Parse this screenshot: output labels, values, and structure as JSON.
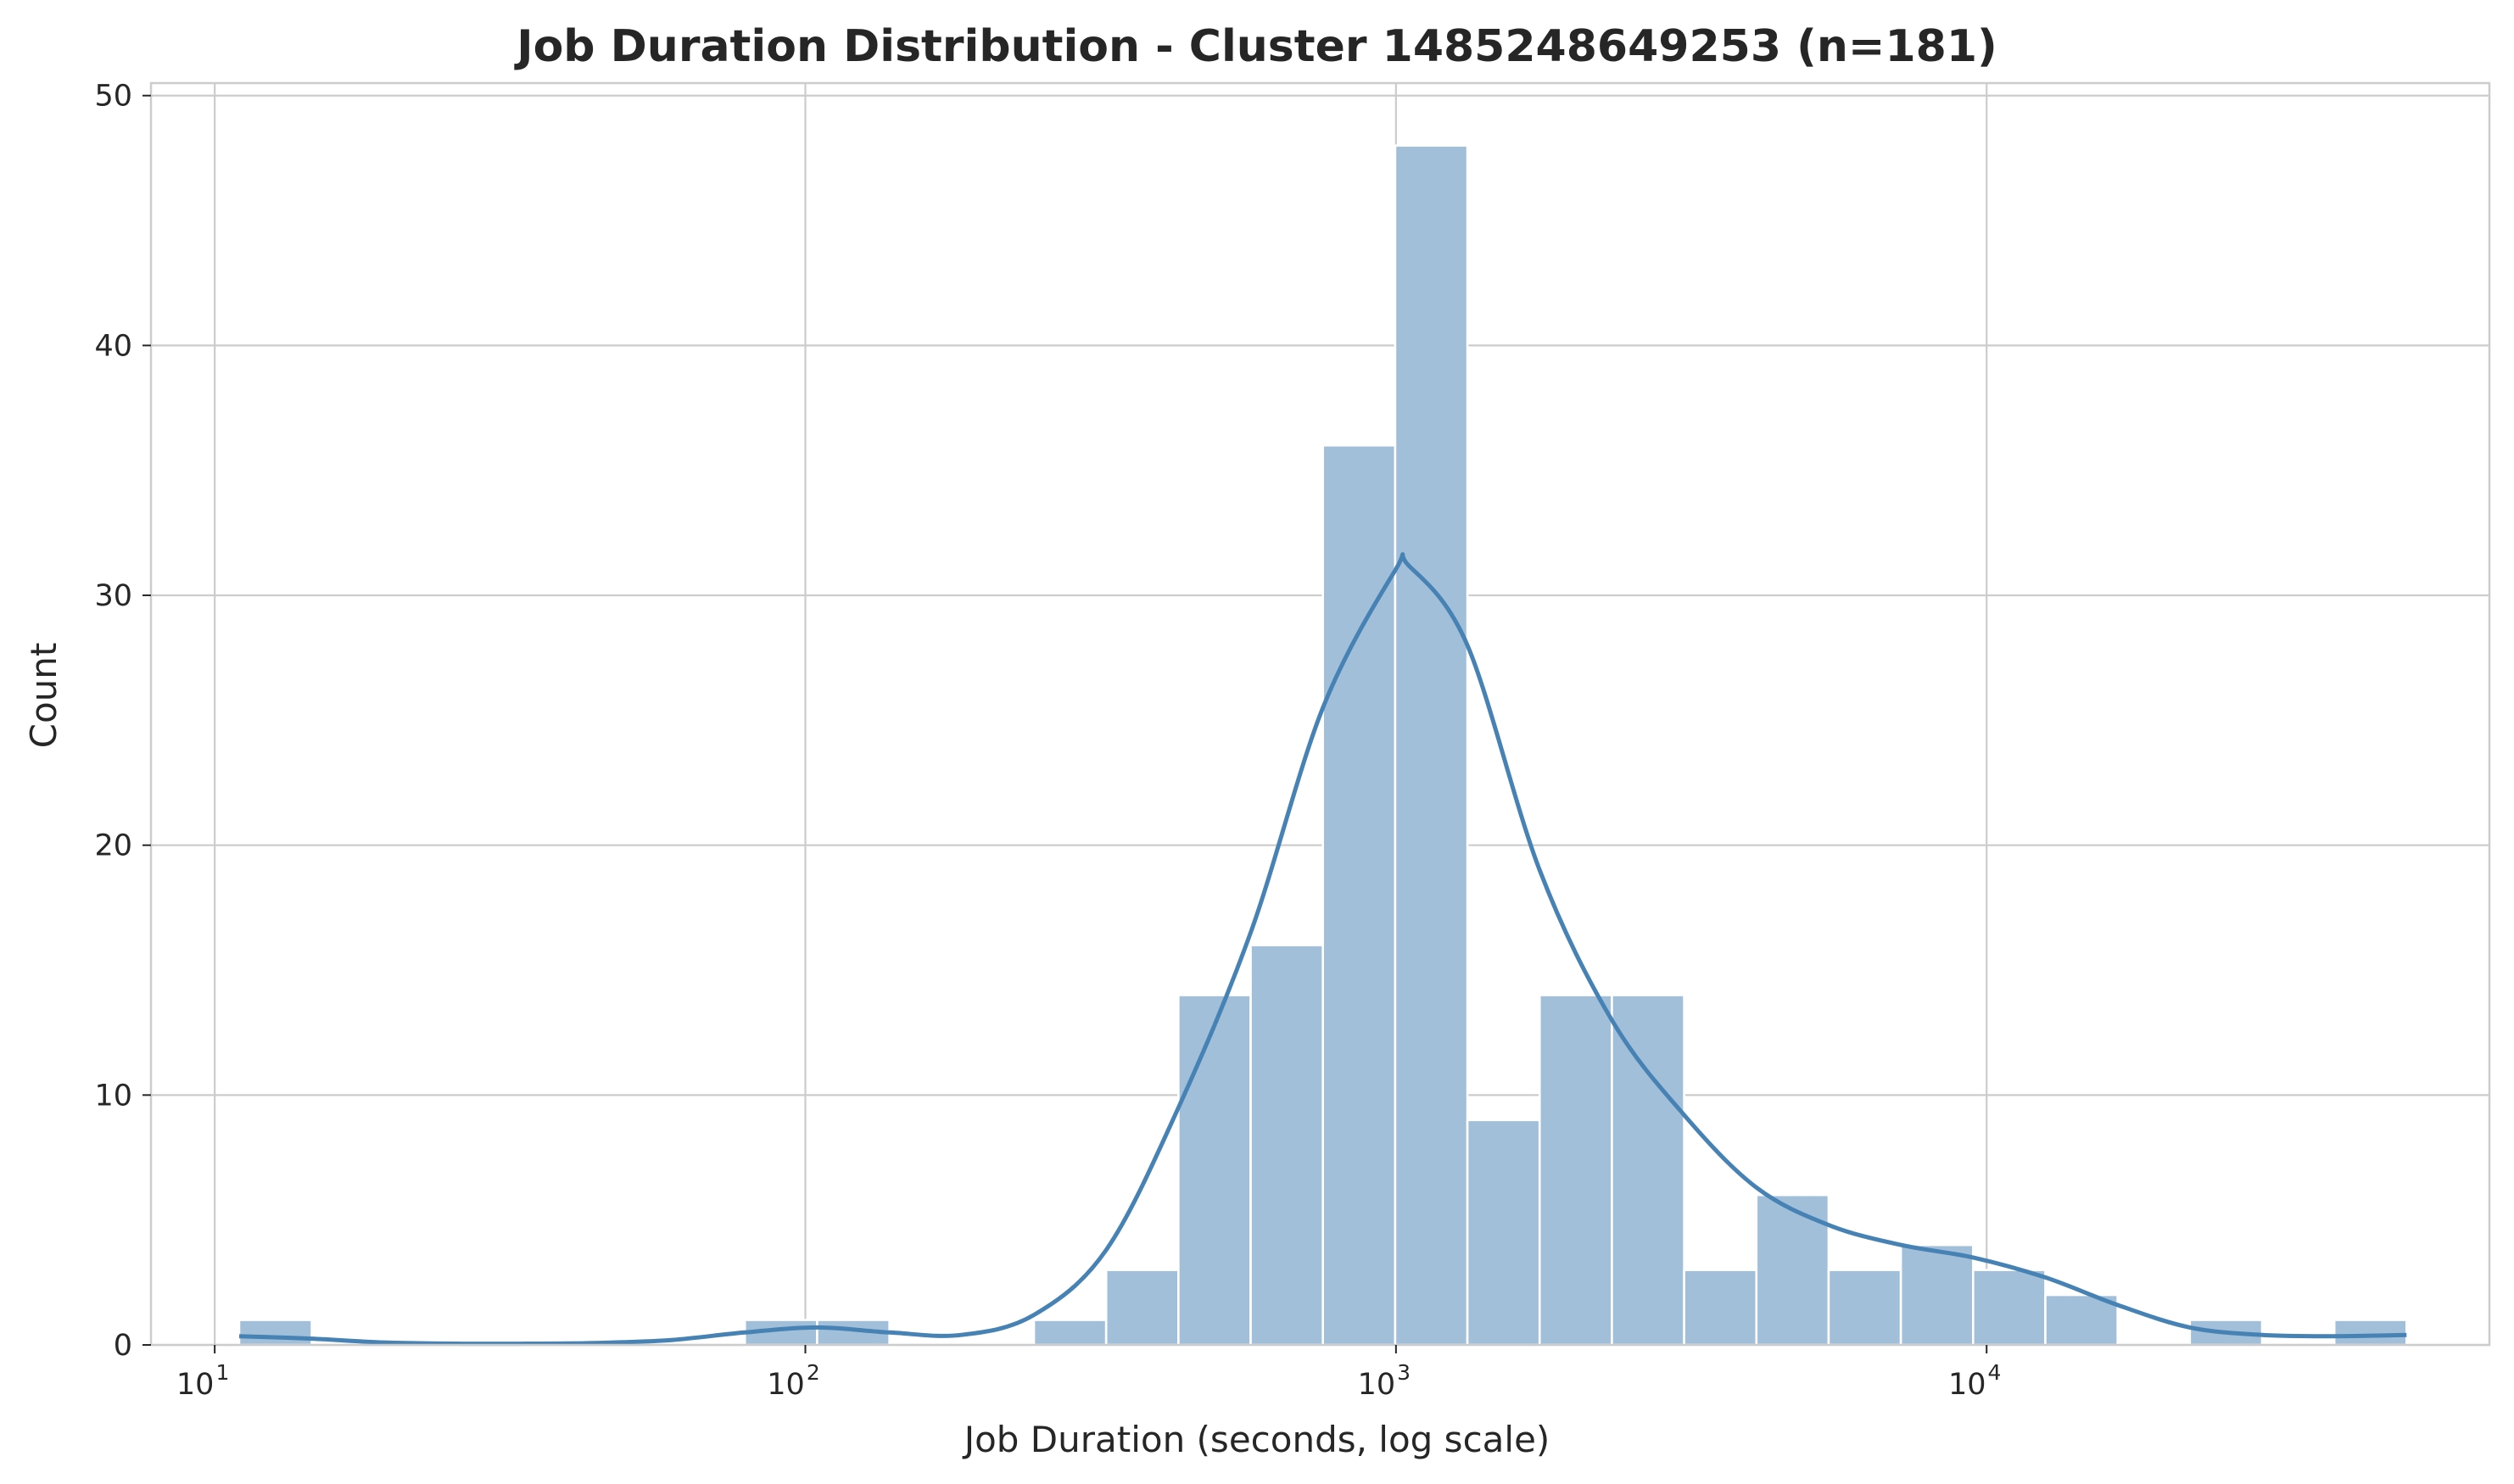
{
  "chart_data": {
    "type": "bar",
    "title": "Job Duration Distribution - Cluster 1485248649253 (n=181)",
    "xlabel": "Job Duration (seconds, log scale)",
    "ylabel": "Count",
    "x_scale": "log",
    "xlim": [
      7.8,
      71000
    ],
    "ylim": [
      0,
      50.5
    ],
    "x_ticks": [
      {
        "value": 10,
        "base": "10",
        "exp": "1"
      },
      {
        "value": 100,
        "base": "10",
        "exp": "2"
      },
      {
        "value": 1000,
        "base": "10",
        "exp": "3"
      },
      {
        "value": 10000,
        "base": "10",
        "exp": "4"
      }
    ],
    "y_ticks": [
      0,
      10,
      20,
      30,
      40,
      50
    ],
    "grid": true,
    "bar_color": "#a2bfd9",
    "kde_color": "#4682b4",
    "bins": [
      {
        "x0": 11.0,
        "x1": 14.6,
        "count": 1
      },
      {
        "x0": 14.6,
        "x1": 19.3,
        "count": 0
      },
      {
        "x0": 19.3,
        "x1": 25.6,
        "count": 0
      },
      {
        "x0": 25.6,
        "x1": 33.9,
        "count": 0
      },
      {
        "x0": 33.9,
        "x1": 45.0,
        "count": 0
      },
      {
        "x0": 45.0,
        "x1": 59.6,
        "count": 0
      },
      {
        "x0": 59.6,
        "x1": 79.0,
        "count": 0
      },
      {
        "x0": 79.0,
        "x1": 104.7,
        "count": 1
      },
      {
        "x0": 104.7,
        "x1": 138.8,
        "count": 1
      },
      {
        "x0": 138.8,
        "x1": 183.9,
        "count": 0
      },
      {
        "x0": 183.9,
        "x1": 243.8,
        "count": 0
      },
      {
        "x0": 243.8,
        "x1": 323.1,
        "count": 1
      },
      {
        "x0": 323.1,
        "x1": 428.2,
        "count": 3
      },
      {
        "x0": 428.2,
        "x1": 567.5,
        "count": 14
      },
      {
        "x0": 567.5,
        "x1": 752.1,
        "count": 16
      },
      {
        "x0": 752.1,
        "x1": 996.8,
        "count": 36
      },
      {
        "x0": 996.8,
        "x1": 1321.1,
        "count": 48
      },
      {
        "x0": 1321.1,
        "x1": 1750.9,
        "count": 9
      },
      {
        "x0": 1750.9,
        "x1": 2320.4,
        "count": 14
      },
      {
        "x0": 2320.4,
        "x1": 3075.3,
        "count": 14
      },
      {
        "x0": 3075.3,
        "x1": 4075.7,
        "count": 3
      },
      {
        "x0": 4075.7,
        "x1": 5401.5,
        "count": 6
      },
      {
        "x0": 5401.5,
        "x1": 7158.6,
        "count": 3
      },
      {
        "x0": 7158.6,
        "x1": 9487.3,
        "count": 4
      },
      {
        "x0": 9487.3,
        "x1": 12573.5,
        "count": 3
      },
      {
        "x0": 12573.5,
        "x1": 16663.6,
        "count": 2
      },
      {
        "x0": 16663.6,
        "x1": 22084.2,
        "count": 0
      },
      {
        "x0": 22084.2,
        "x1": 29268.1,
        "count": 1
      },
      {
        "x0": 29268.1,
        "x1": 38789.0,
        "count": 0
      },
      {
        "x0": 38789.0,
        "x1": 51407.0,
        "count": 1
      }
    ],
    "kde": [
      [
        11.0,
        0.35
      ],
      [
        14.6,
        0.25
      ],
      [
        19.3,
        0.1
      ],
      [
        25.6,
        0.05
      ],
      [
        33.9,
        0.05
      ],
      [
        45.0,
        0.08
      ],
      [
        59.6,
        0.2
      ],
      [
        79.0,
        0.5
      ],
      [
        104.7,
        0.7
      ],
      [
        138.8,
        0.5
      ],
      [
        183.9,
        0.4
      ],
      [
        243.8,
        1.2
      ],
      [
        323.1,
        3.8
      ],
      [
        428.2,
        9.5
      ],
      [
        567.5,
        16.5
      ],
      [
        752.1,
        25.5
      ],
      [
        996.8,
        31.0
      ],
      [
        1050.0,
        31.2
      ],
      [
        1321.1,
        28.0
      ],
      [
        1750.9,
        19.0
      ],
      [
        2320.4,
        13.0
      ],
      [
        3075.3,
        9.2
      ],
      [
        4075.7,
        6.3
      ],
      [
        5401.5,
        4.8
      ],
      [
        7158.6,
        4.0
      ],
      [
        9487.3,
        3.5
      ],
      [
        12573.5,
        2.7
      ],
      [
        16663.6,
        1.6
      ],
      [
        22084.2,
        0.7
      ],
      [
        29268.1,
        0.4
      ],
      [
        38789.0,
        0.35
      ],
      [
        51407.0,
        0.4
      ]
    ]
  }
}
